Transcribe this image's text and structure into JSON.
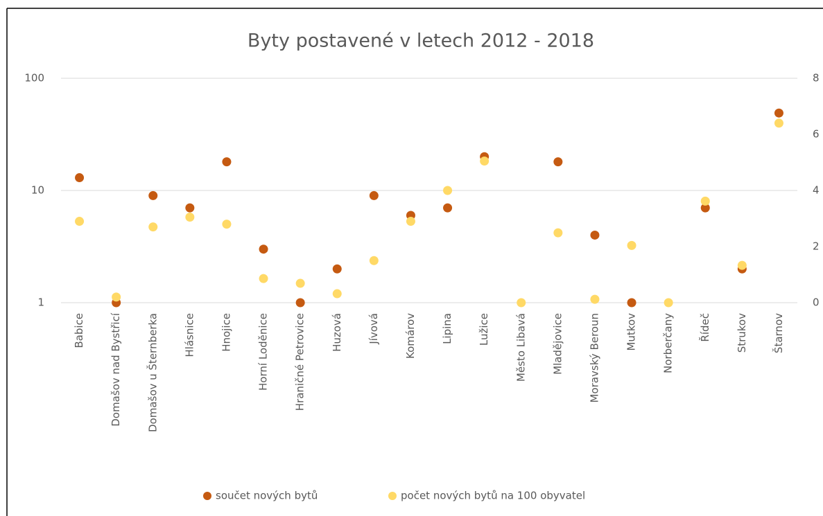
{
  "chart_data": {
    "type": "scatter",
    "title": "Byty postavené v letech 2012 - 2018",
    "categories": [
      "Babice",
      "Domašov nad Bystřicí",
      "Domašov u Šternberka",
      "Hlásnice",
      "Hnojice",
      "Horní Loděnice",
      "Hraničné Petrovice",
      "Huzová",
      "Jívová",
      "Komárov",
      "Lipina",
      "Lužice",
      "Město Libavá",
      "Mladějovice",
      "Moravský Beroun",
      "Mutkov",
      "Norberčany",
      "Řídeč",
      "Strukov",
      "Štarnov"
    ],
    "series": [
      {
        "name": "součet nových bytů",
        "color": "#c55a11",
        "values": [
          13,
          1,
          9,
          7,
          18,
          3,
          1,
          2,
          9,
          6,
          7,
          20,
          null,
          18,
          4,
          1,
          null,
          7,
          2,
          49
        ]
      },
      {
        "name": "počet nových bytů na 100 obyvatel",
        "color": "#ffd966",
        "axis": "y2",
        "values": [
          2.9,
          0.2,
          2.7,
          3.05,
          2.8,
          0.86,
          0.69,
          0.32,
          1.5,
          2.9,
          4.0,
          5.05,
          0,
          2.49,
          0.12,
          2.04,
          0,
          3.62,
          1.33,
          6.4
        ]
      }
    ],
    "ylim": [
      1,
      100
    ],
    "yticks": [
      1,
      10,
      100
    ],
    "yscale": "log",
    "y2lim": [
      0,
      8
    ],
    "y2ticks": [
      0,
      2,
      4,
      6,
      8
    ],
    "grid": true,
    "legend": "bottom"
  }
}
